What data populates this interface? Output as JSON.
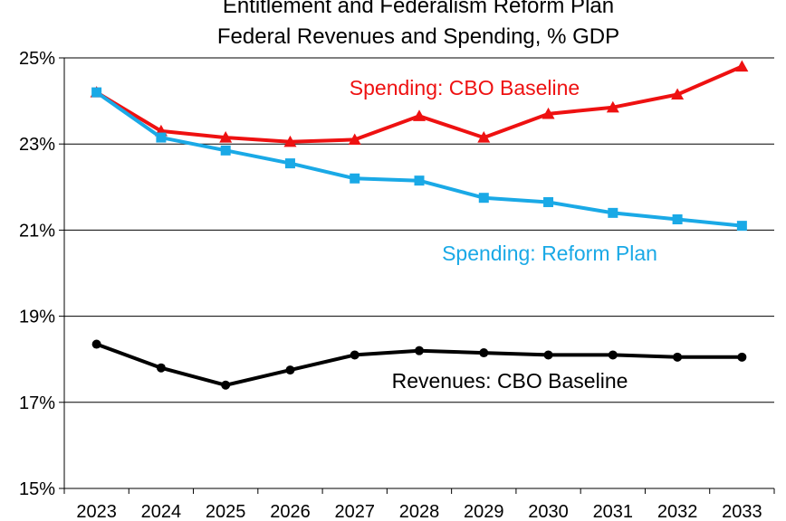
{
  "chart_data": {
    "type": "line",
    "title": "Entitlement and Federalism Reform Plan",
    "subtitle": "Federal Revenues and Spending, % GDP",
    "xlabel": "",
    "ylabel": "",
    "x": [
      "2023",
      "2024",
      "2025",
      "2026",
      "2027",
      "2028",
      "2029",
      "2030",
      "2031",
      "2032",
      "2033"
    ],
    "ylim": [
      15,
      25
    ],
    "yticks": [
      15,
      17,
      19,
      21,
      23,
      25
    ],
    "ytick_labels": [
      "15%",
      "17%",
      "19%",
      "21%",
      "23%",
      "25%"
    ],
    "grid": "horizontal",
    "legend": "inline-labels",
    "series": [
      {
        "name": "Spending: CBO Baseline",
        "color": "#ee1111",
        "marker": "triangle",
        "values": [
          24.2,
          23.3,
          23.15,
          23.05,
          23.1,
          23.65,
          23.15,
          23.7,
          23.85,
          24.15,
          24.8
        ]
      },
      {
        "name": "Spending: Reform Plan",
        "color": "#1aa9e6",
        "marker": "square",
        "values": [
          24.2,
          23.15,
          22.85,
          22.55,
          22.2,
          22.15,
          21.75,
          21.65,
          21.4,
          21.25,
          21.1
        ]
      },
      {
        "name": "Revenues: CBO Baseline",
        "color": "#000000",
        "marker": "circle",
        "values": [
          18.35,
          17.8,
          17.4,
          17.75,
          18.1,
          18.2,
          18.15,
          18.1,
          18.1,
          18.05,
          18.05
        ]
      }
    ]
  }
}
